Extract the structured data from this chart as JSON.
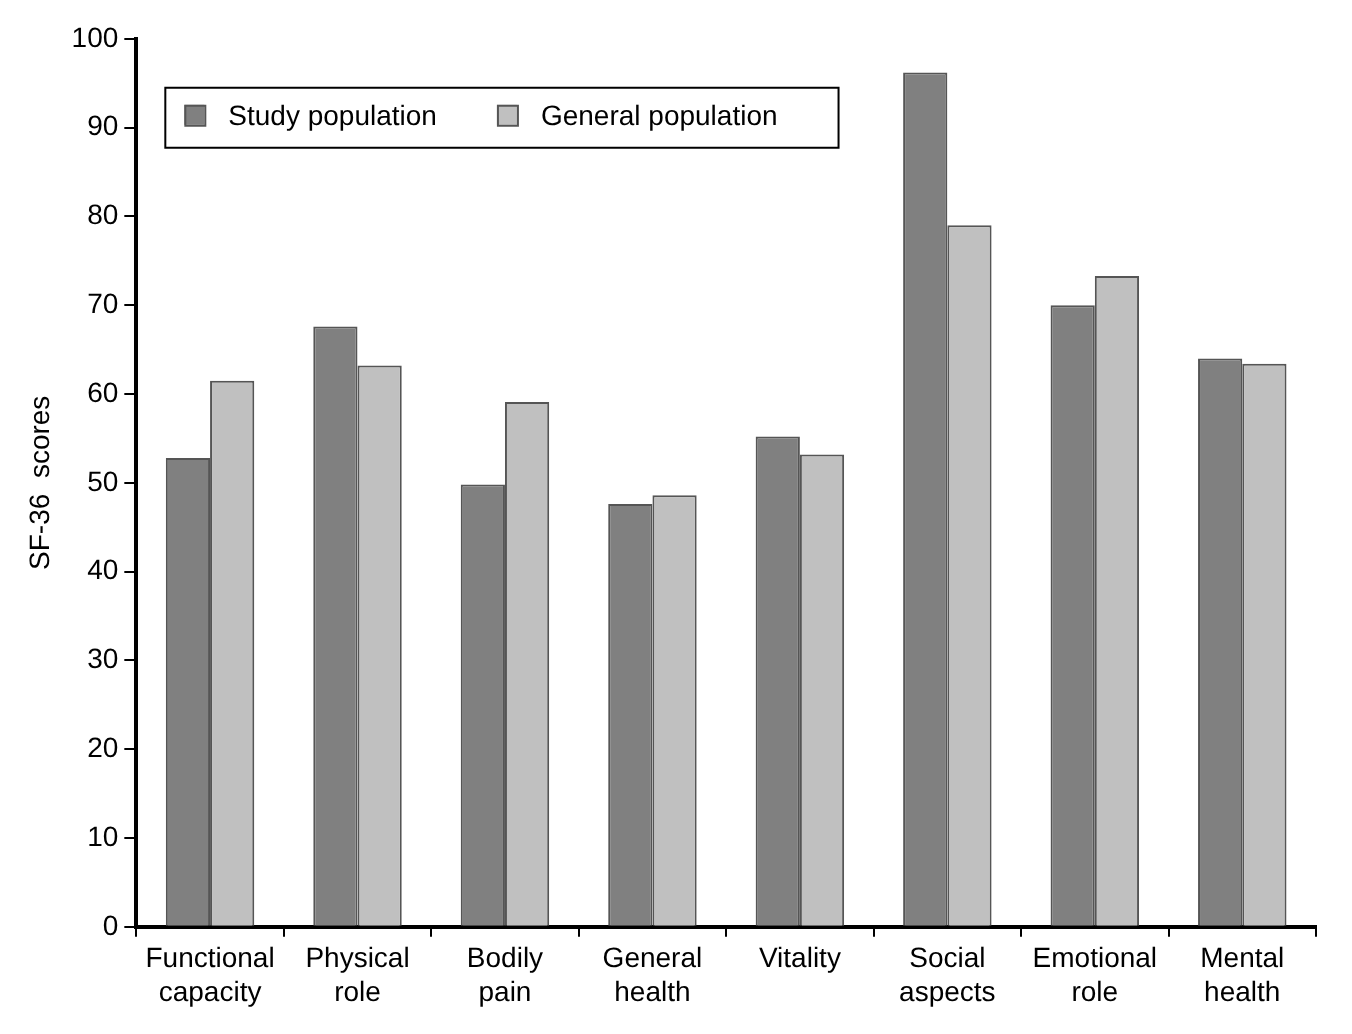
{
  "chart_data": {
    "type": "bar",
    "ylabel": "SF-36  scores",
    "categories": [
      "Functional capacity",
      "Physical role",
      "Bodily pain",
      "General health",
      "Vitality",
      "Social aspects",
      "Emotional role",
      "Mental health"
    ],
    "series": [
      {
        "name": "Study population",
        "color": "#808080",
        "values": [
          52.8,
          67.6,
          49.8,
          47.6,
          55.2,
          96.2,
          70.0,
          64.0
        ]
      },
      {
        "name": "General population",
        "color": "#c0c0c0",
        "values": [
          61.5,
          63.2,
          59.1,
          48.6,
          53.2,
          79.0,
          73.3,
          63.4
        ]
      }
    ],
    "ylim": [
      0,
      100
    ],
    "yticks": [
      0,
      10,
      20,
      30,
      40,
      50,
      60,
      70,
      80,
      90,
      100
    ],
    "grid": false,
    "legend": "top left"
  }
}
